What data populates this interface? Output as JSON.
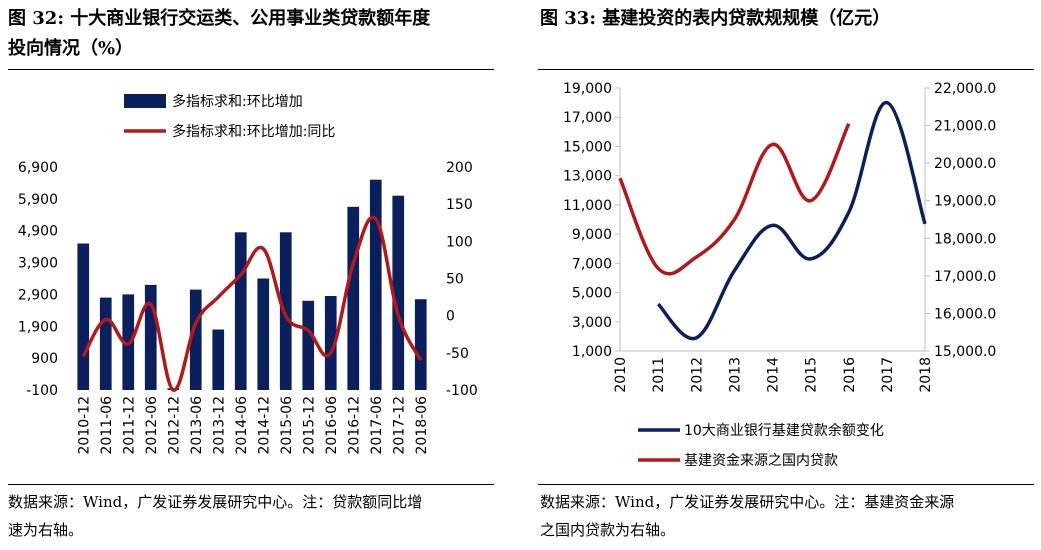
{
  "left": {
    "title_line1": "图 32:  十大商业银行交运类、公用事业类贷款额年度",
    "title_line2": "投向情况（%）",
    "footer_line1": "数据来源：Wind，广发证券发展研究中心。注：贷款额同比增",
    "footer_line2": "速为右轴。"
  },
  "right": {
    "title": "图 33:  基建投资的表内贷款规规模（亿元）",
    "footer_line1": "数据来源：Wind，广发证券发展研究中心。注：基建资金来源",
    "footer_line2": "之国内贷款为右轴。"
  },
  "colors": {
    "navy": "#0b1f5c",
    "red": "#b01a1a"
  },
  "chart_data": [
    {
      "type": "bar",
      "categories": [
        "2010-12",
        "2011-06",
        "2011-12",
        "2012-06",
        "2012-12",
        "2013-06",
        "2013-12",
        "2014-06",
        "2014-12",
        "2015-06",
        "2015-12",
        "2016-06",
        "2016-12",
        "2017-06",
        "2017-12",
        "2018-06"
      ],
      "series": [
        {
          "name": "多指标求和:环比增加",
          "type": "bar",
          "axis": "left",
          "values": [
            4500,
            2800,
            2900,
            3200,
            -50,
            3050,
            1800,
            4850,
            3400,
            4850,
            2700,
            2850,
            5650,
            6500,
            6000,
            2750
          ]
        },
        {
          "name": "多指标求和:环比增加:同比",
          "type": "line",
          "axis": "right",
          "values": [
            -55,
            -5,
            -38,
            15,
            -100,
            -10,
            25,
            55,
            90,
            0,
            -20,
            -50,
            70,
            130,
            0,
            -60
          ]
        }
      ],
      "y_left": {
        "min": -100,
        "max": 6900,
        "ticks": [
          "-100",
          "900",
          "1,900",
          "2,900",
          "3,900",
          "4,900",
          "5,900",
          "6,900"
        ]
      },
      "y_right": {
        "min": -100,
        "max": 200,
        "ticks": [
          "-100",
          "-50",
          "0",
          "50",
          "100",
          "150",
          "200"
        ]
      },
      "legend": "top-left",
      "grid": false
    },
    {
      "type": "line",
      "x": [
        "2010",
        "2011",
        "2012",
        "2013",
        "2014",
        "2015",
        "2016",
        "2017",
        "2018"
      ],
      "series": [
        {
          "name": "10大商业银行基建贷款余额变化",
          "axis": "left",
          "values": [
            null,
            4200,
            1900,
            6500,
            9600,
            7300,
            10500,
            18000,
            9700
          ]
        },
        {
          "name": "基建资金来源之国内贷款",
          "axis": "right",
          "values": [
            19600,
            17200,
            17500,
            18500,
            20500,
            19000,
            21050,
            null,
            null
          ]
        }
      ],
      "y_left": {
        "min": 1000,
        "max": 19000,
        "ticks": [
          "1,000",
          "3,000",
          "5,000",
          "7,000",
          "9,000",
          "11,000",
          "13,000",
          "15,000",
          "17,000",
          "19,000"
        ]
      },
      "y_right": {
        "min": 15000,
        "max": 22000,
        "ticks": [
          "15,000.0",
          "16,000.0",
          "17,000.0",
          "18,000.0",
          "19,000.0",
          "20,000.0",
          "21,000.0",
          "22,000.0"
        ]
      },
      "legend": "bottom",
      "grid": false
    }
  ]
}
